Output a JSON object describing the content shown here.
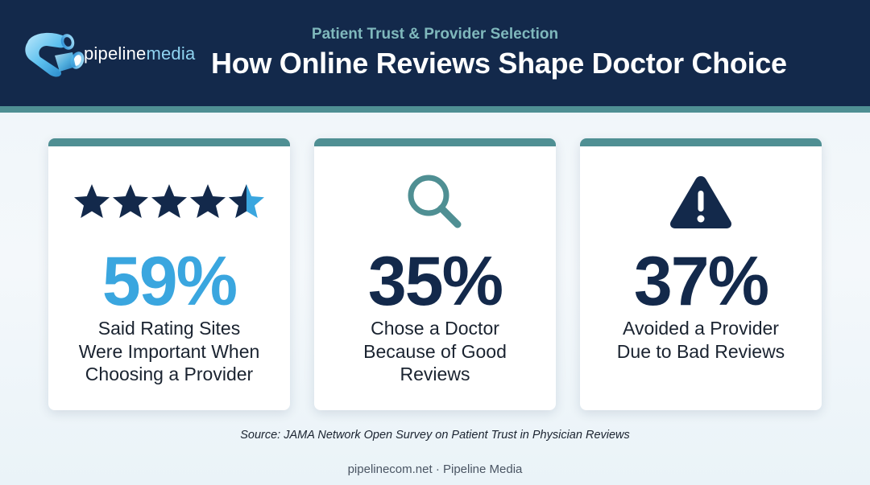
{
  "header": {
    "logo": {
      "text_main": "pipeline",
      "text_accent": "media"
    },
    "subtitle": "Patient Trust & Provider Selection",
    "title": "How Online Reviews Shape Doctor Choice"
  },
  "cards": [
    {
      "icon": "four-and-a-half-stars-icon",
      "rating": 4.5,
      "stat": "59%",
      "desc": [
        "Said Rating Sites",
        "Were Important When",
        "Choosing a Provider"
      ],
      "stat_color": "#3aa6df"
    },
    {
      "icon": "magnifying-glass-icon",
      "stat": "35%",
      "desc": [
        "Chose a Doctor",
        "Because of Good",
        "Reviews"
      ],
      "stat_color": "#13294b"
    },
    {
      "icon": "warning-icon",
      "stat": "37%",
      "desc": [
        "Avoided a Provider",
        "Due to Bad Reviews"
      ],
      "stat_color": "#13294b"
    }
  ],
  "source": "Source: JAMA Network Open Survey on Patient Trust in Physician Reviews",
  "footer": "pipelinecom.net · Pipeline Media",
  "colors": {
    "navy": "#13294b",
    "teal": "#4f8f93",
    "sky": "#3aa6df",
    "subtitle": "#7fb8bc"
  }
}
